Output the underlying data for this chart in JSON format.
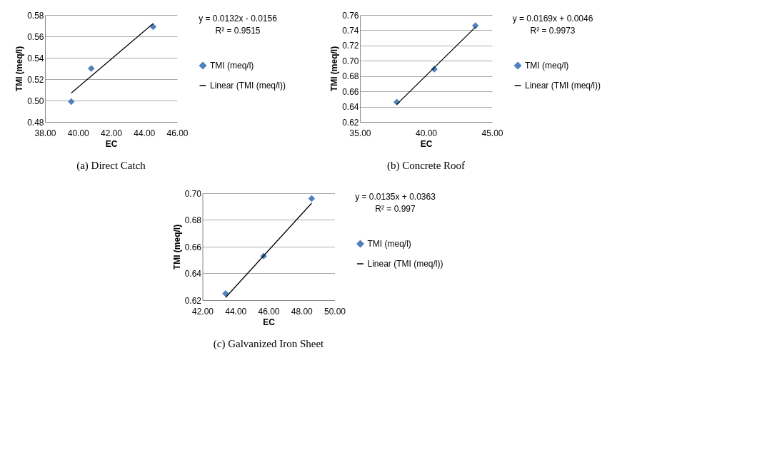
{
  "chart_data": [
    {
      "type": "scatter",
      "title": "(a) Direct Catch",
      "xlabel": "EC",
      "ylabel": "TMI (meq/l)",
      "annotations": [
        "y = 0.0132x - 0.0156",
        "R² = 0.9515"
      ],
      "marker": "diamond",
      "grid": "y",
      "legend": "right",
      "xlim": [
        38,
        46
      ],
      "xticks": [
        {
          "value": 38,
          "label": "38.00"
        },
        {
          "value": 40,
          "label": "40.00"
        },
        {
          "value": 42,
          "label": "42.00"
        },
        {
          "value": 44,
          "label": "44.00"
        },
        {
          "value": 46,
          "label": "46.00"
        }
      ],
      "ylim": [
        0.48,
        0.58
      ],
      "yticks": [
        {
          "value": 0.48,
          "label": "0.48"
        },
        {
          "value": 0.5,
          "label": "0.50"
        },
        {
          "value": 0.52,
          "label": "0.52"
        },
        {
          "value": 0.54,
          "label": "0.54"
        },
        {
          "value": 0.56,
          "label": "0.56"
        },
        {
          "value": 0.58,
          "label": "0.58"
        }
      ],
      "series": [
        {
          "name": "TMI (meq/l)",
          "color": "#4f81bd",
          "x": [
            39.59,
            40.8,
            44.55
          ],
          "values": [
            0.499,
            0.53,
            0.569
          ]
        },
        {
          "name": "Linear (TMI (meq/l))",
          "type": "line",
          "marker": "none",
          "color": "#000000",
          "x": [
            39.59,
            44.55
          ],
          "values": [
            0.507,
            0.572
          ]
        }
      ]
    },
    {
      "type": "scatter",
      "title": "(b) Concrete Roof",
      "xlabel": "EC",
      "ylabel": "TMI (meq/l)",
      "annotations": [
        "y = 0.0169x + 0.0046",
        "R² = 0.9973"
      ],
      "marker": "diamond",
      "grid": "y",
      "legend": "right",
      "xlim": [
        35,
        45
      ],
      "xticks": [
        {
          "value": 35,
          "label": "35.00"
        },
        {
          "value": 40,
          "label": "40.00"
        },
        {
          "value": 45,
          "label": "45.00"
        }
      ],
      "ylim": [
        0.62,
        0.76
      ],
      "yticks": [
        {
          "value": 0.62,
          "label": "0.62"
        },
        {
          "value": 0.64,
          "label": "0.64"
        },
        {
          "value": 0.66,
          "label": "0.66"
        },
        {
          "value": 0.68,
          "label": "0.68"
        },
        {
          "value": 0.7,
          "label": "0.70"
        },
        {
          "value": 0.72,
          "label": "0.72"
        },
        {
          "value": 0.74,
          "label": "0.74"
        },
        {
          "value": 0.76,
          "label": "0.76"
        }
      ],
      "series": [
        {
          "name": "TMI (meq/l)",
          "color": "#4f81bd",
          "x": [
            37.79,
            40.63,
            43.74
          ],
          "values": [
            0.646,
            0.689,
            0.746
          ]
        },
        {
          "name": "Linear (TMI (meq/l))",
          "type": "line",
          "marker": "none",
          "color": "#000000",
          "x": [
            37.79,
            43.74
          ],
          "values": [
            0.643,
            0.744
          ]
        }
      ]
    },
    {
      "type": "scatter",
      "title": "(c) Galvanized Iron Sheet",
      "xlabel": "EC",
      "ylabel": "TMI (meq/l)",
      "annotations": [
        "y = 0.0135x + 0.0363",
        "R² = 0.997"
      ],
      "marker": "diamond",
      "grid": "y",
      "legend": "right",
      "xlim": [
        42,
        50
      ],
      "xticks": [
        {
          "value": 42,
          "label": "42.00"
        },
        {
          "value": 44,
          "label": "44.00"
        },
        {
          "value": 46,
          "label": "46.00"
        },
        {
          "value": 48,
          "label": "48.00"
        },
        {
          "value": 50,
          "label": "50.00"
        }
      ],
      "ylim": [
        0.62,
        0.7
      ],
      "yticks": [
        {
          "value": 0.62,
          "label": "0.62"
        },
        {
          "value": 0.64,
          "label": "0.64"
        },
        {
          "value": 0.66,
          "label": "0.66"
        },
        {
          "value": 0.68,
          "label": "0.68"
        },
        {
          "value": 0.7,
          "label": "0.70"
        }
      ],
      "series": [
        {
          "name": "TMI (meq/l)",
          "color": "#4f81bd",
          "x": [
            43.4,
            45.7,
            48.61
          ],
          "values": [
            0.625,
            0.653,
            0.696
          ]
        },
        {
          "name": "Linear (TMI (meq/l))",
          "type": "line",
          "marker": "none",
          "color": "#000000",
          "x": [
            43.4,
            48.61
          ],
          "values": [
            0.622,
            0.6925
          ]
        }
      ]
    }
  ]
}
